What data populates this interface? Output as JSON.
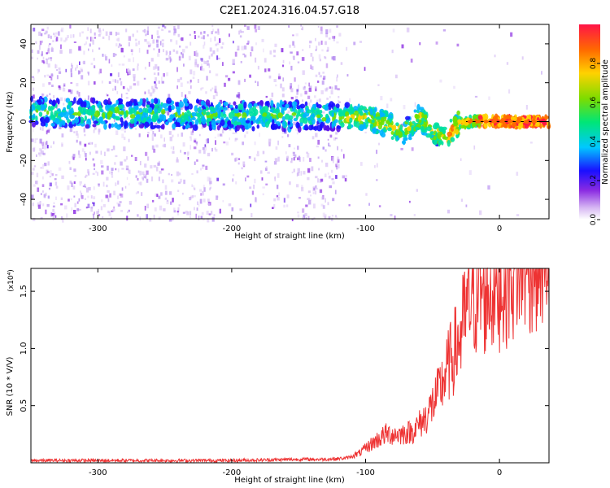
{
  "title": "C2E1.2024.316.04.57.G18",
  "chart_data": [
    {
      "type": "heatmap",
      "xlabel": "Height of straight line (km)",
      "ylabel": "Frequency (Hz)",
      "xlim": [
        -350,
        37
      ],
      "ylim": [
        -50,
        50
      ],
      "xticks": [
        -300,
        -200,
        -100,
        0
      ],
      "yticks": [
        -40,
        -20,
        0,
        20,
        40
      ],
      "grid": false,
      "colorbar": {
        "label": "Normalized spectral amplitude",
        "range": [
          0,
          1
        ],
        "ticks": [
          "0.0",
          "0.2",
          "0.4",
          "0.6",
          "0.8"
        ]
      },
      "ridge": {
        "x": [
          -350,
          -300,
          -250,
          -200,
          -150,
          -120,
          -100,
          -90,
          -80,
          -70,
          -60,
          -50,
          -40,
          -30,
          -20,
          0,
          37
        ],
        "y": [
          5,
          4,
          4,
          3,
          3,
          3,
          2,
          0,
          -3,
          -5,
          2,
          -4,
          -8,
          -1,
          0,
          0,
          0
        ]
      }
    },
    {
      "type": "line",
      "xlabel": "Height of straight line (km)",
      "ylabel": "SNR (10 * V/V)",
      "y_scale_note": "(x10⁴)",
      "xlim": [
        -350,
        37
      ],
      "ylim": [
        0,
        1.7
      ],
      "xticks": [
        -300,
        -200,
        -100,
        0
      ],
      "yticks": [
        "0.5",
        "1.0",
        "1.5"
      ],
      "color": "#ee3333",
      "series": [
        {
          "x": [
            -350,
            -300,
            -250,
            -200,
            -150,
            -130,
            -115,
            -105,
            -95,
            -85,
            -75,
            -65,
            -55,
            -45,
            -38,
            -30,
            -25,
            -20,
            -15,
            -10,
            -5,
            0,
            5,
            10,
            15,
            20,
            25,
            30,
            37
          ],
          "y": [
            0.02,
            0.02,
            0.02,
            0.02,
            0.03,
            0.03,
            0.04,
            0.07,
            0.15,
            0.22,
            0.22,
            0.24,
            0.35,
            0.55,
            0.75,
            0.95,
            1.15,
            1.3,
            1.3,
            1.32,
            1.35,
            1.4,
            1.45,
            1.5,
            1.55,
            1.6,
            1.62,
            1.63,
            1.65
          ]
        }
      ]
    }
  ]
}
